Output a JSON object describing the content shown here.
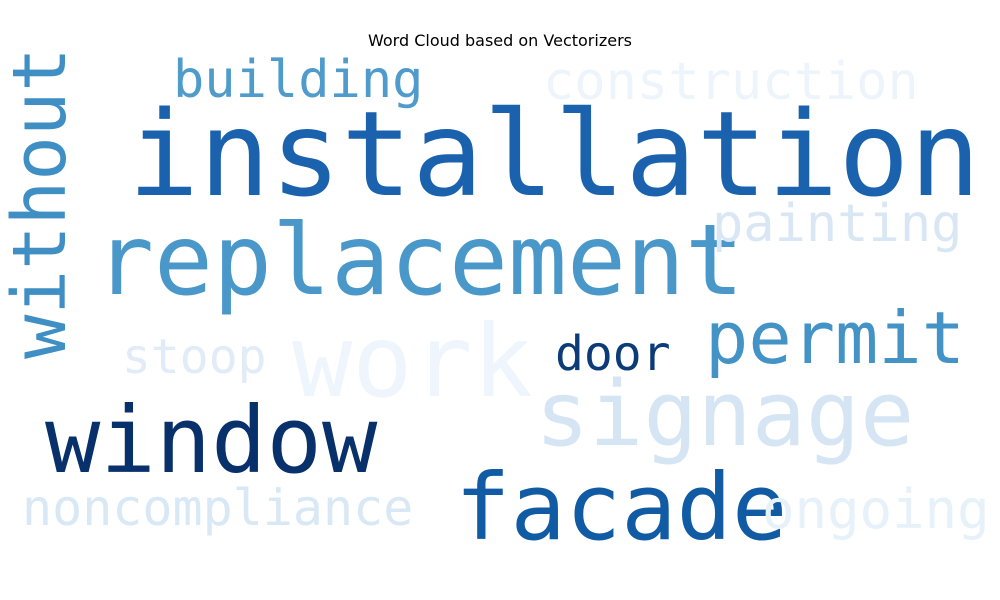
{
  "title": "Word Cloud based on Vectorizers",
  "words": [
    {
      "text": "installation",
      "color": "#1a62ad"
    },
    {
      "text": "replacement",
      "color": "#4a98c9"
    },
    {
      "text": "window",
      "color": "#08306b"
    },
    {
      "text": "facade",
      "color": "#105ba4"
    },
    {
      "text": "signage",
      "color": "#d6e5f4"
    },
    {
      "text": "work",
      "color": "#eef5fc"
    },
    {
      "text": "permit",
      "color": "#4393c6"
    },
    {
      "text": "without",
      "color": "#3f8fc5"
    },
    {
      "text": "building",
      "color": "#4f9bcb"
    },
    {
      "text": "construction",
      "color": "#eef4fb"
    },
    {
      "text": "painting",
      "color": "#d9e7f5"
    },
    {
      "text": "door",
      "color": "#0c3c78"
    },
    {
      "text": "stoop",
      "color": "#e1ecf8"
    },
    {
      "text": "noncompliance",
      "color": "#d9e8f5"
    },
    {
      "text": "ongoing",
      "color": "#e7f1fa"
    }
  ]
}
